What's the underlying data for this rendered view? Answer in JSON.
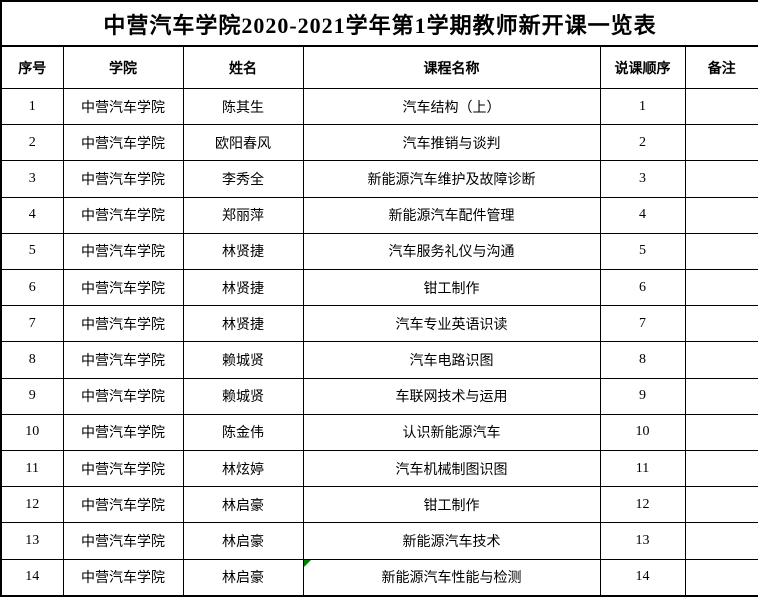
{
  "page": {
    "background": "#ffffff",
    "text_color": "#000000",
    "border_color": "#000000",
    "error_marker_color": "#008000"
  },
  "table": {
    "title": "中营汽车学院2020-2021学年第1学期教师新开课一览表",
    "headers": [
      "序号",
      "学院",
      "姓名",
      "课程名称",
      "说课顺序",
      "备注"
    ],
    "rows": [
      {
        "no": "1",
        "college": "中营汽车学院",
        "name": "陈其生",
        "course": "汽车结构（上）",
        "order": "1",
        "remark": "",
        "error_marker": false
      },
      {
        "no": "2",
        "college": "中营汽车学院",
        "name": "欧阳春风",
        "course": "汽车推销与谈判",
        "order": "2",
        "remark": "",
        "error_marker": false
      },
      {
        "no": "3",
        "college": "中营汽车学院",
        "name": "李秀全",
        "course": "新能源汽车维护及故障诊断",
        "order": "3",
        "remark": "",
        "error_marker": false
      },
      {
        "no": "4",
        "college": "中营汽车学院",
        "name": "郑丽萍",
        "course": "新能源汽车配件管理",
        "order": "4",
        "remark": "",
        "error_marker": false
      },
      {
        "no": "5",
        "college": "中营汽车学院",
        "name": "林贤捷",
        "course": "汽车服务礼仪与沟通",
        "order": "5",
        "remark": "",
        "error_marker": false
      },
      {
        "no": "6",
        "college": "中营汽车学院",
        "name": "林贤捷",
        "course": "钳工制作",
        "order": "6",
        "remark": "",
        "error_marker": false
      },
      {
        "no": "7",
        "college": "中营汽车学院",
        "name": "林贤捷",
        "course": "汽车专业英语识读",
        "order": "7",
        "remark": "",
        "error_marker": false
      },
      {
        "no": "8",
        "college": "中营汽车学院",
        "name": "赖城贤",
        "course": "汽车电路识图",
        "order": "8",
        "remark": "",
        "error_marker": false
      },
      {
        "no": "9",
        "college": "中营汽车学院",
        "name": "赖城贤",
        "course": "车联网技术与运用",
        "order": "9",
        "remark": "",
        "error_marker": false
      },
      {
        "no": "10",
        "college": "中营汽车学院",
        "name": "陈金伟",
        "course": "认识新能源汽车",
        "order": "10",
        "remark": "",
        "error_marker": false
      },
      {
        "no": "11",
        "college": "中营汽车学院",
        "name": "林炫婷",
        "course": "汽车机械制图识图",
        "order": "11",
        "remark": "",
        "error_marker": false
      },
      {
        "no": "12",
        "college": "中营汽车学院",
        "name": "林启豪",
        "course": "钳工制作",
        "order": "12",
        "remark": "",
        "error_marker": false
      },
      {
        "no": "13",
        "college": "中营汽车学院",
        "name": "林启豪",
        "course": "新能源汽车技术",
        "order": "13",
        "remark": "",
        "error_marker": false
      },
      {
        "no": "14",
        "college": "中营汽车学院",
        "name": "林启豪",
        "course": "新能源汽车性能与检测",
        "order": "14",
        "remark": "",
        "error_marker": true
      }
    ]
  }
}
